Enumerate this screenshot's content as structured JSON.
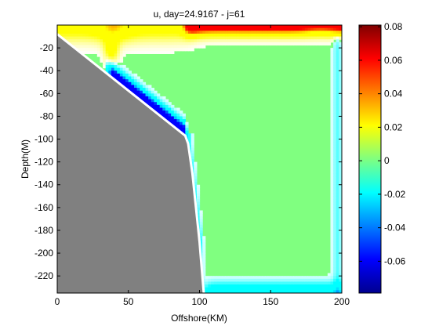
{
  "chart_data": {
    "type": "heatmap",
    "title": "u, day=24.9167 - j=61",
    "xlabel": "Offshore(KM)",
    "ylabel": "Depth(M)",
    "xlim": [
      0,
      200
    ],
    "ylim": [
      -235,
      0
    ],
    "x_ticks": [
      "0",
      "50",
      "100",
      "150",
      "200"
    ],
    "x_tick_values": [
      0,
      50,
      100,
      150,
      200
    ],
    "y_ticks": [
      "-20",
      "-40",
      "-60",
      "-80",
      "-100",
      "-120",
      "-140",
      "-160",
      "-180",
      "-200",
      "-220"
    ],
    "y_tick_values": [
      -20,
      -40,
      -60,
      -80,
      -100,
      -120,
      -140,
      -160,
      -180,
      -200,
      -220
    ],
    "colorbar": {
      "min": -0.079,
      "max": 0.081,
      "ticks": [
        "0.08",
        "0.06",
        "0.04",
        "0.02",
        "0",
        "-0.02",
        "-0.04",
        "-0.06"
      ],
      "tick_values": [
        0.08,
        0.06,
        0.04,
        0.02,
        0,
        -0.02,
        -0.04,
        -0.06
      ],
      "colormap": "jet"
    },
    "bathymetry": {
      "offshore_km": [
        0,
        90,
        92,
        95,
        100,
        103
      ],
      "depth_m": [
        -8,
        -97,
        -104,
        -130,
        -190,
        -235
      ],
      "fill_color": "#808080"
    },
    "background_value": 0,
    "features": [
      {
        "name": "surface jet",
        "x_range": [
          90,
          200
        ],
        "depth_range": [
          0,
          -12
        ],
        "peak_value": 0.075
      },
      {
        "name": "nearshore surface",
        "x_range": [
          0,
          90
        ],
        "depth_range": [
          0,
          -25
        ],
        "peak_value": 0.05
      },
      {
        "name": "slope undercurrent",
        "x_range": [
          36,
          90
        ],
        "depth_range": [
          -38,
          -95
        ],
        "peak_value": -0.075
      },
      {
        "name": "bottom return flow",
        "x_range": [
          103,
          200
        ],
        "depth_range": [
          -215,
          -235
        ],
        "peak_value": -0.035
      },
      {
        "name": "outer boundary flow",
        "x_range": [
          185,
          200
        ],
        "depth_range": [
          -10,
          -230
        ],
        "peak_value": -0.015
      }
    ]
  }
}
